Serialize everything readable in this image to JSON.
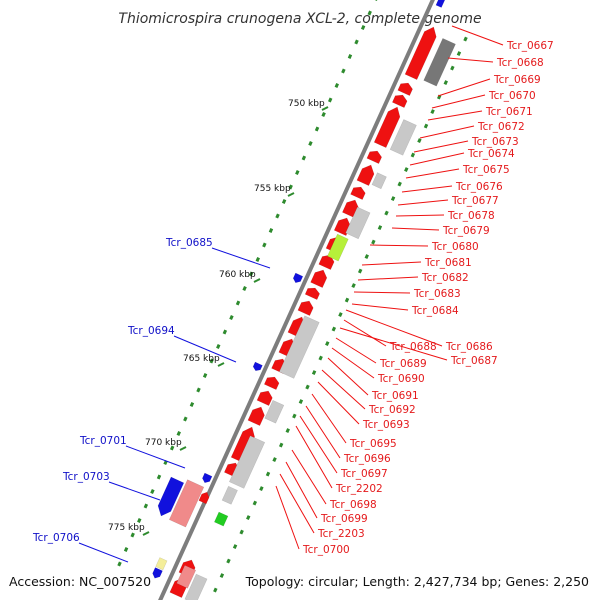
{
  "title": "Thiomicrospira crunogena XCL-2, complete genome",
  "accession": "Accession: NC_007520",
  "summary": "Topology: circular; Length: 2,427,734 bp; Genes: 2,250",
  "ticks": [
    "750 kbp",
    "755 kbp",
    "760 kbp",
    "765 kbp",
    "770 kbp",
    "775 kbp"
  ],
  "right_labels": [
    "Tcr_0667",
    "Tcr_0668",
    "Tcr_0669",
    "Tcr_0670",
    "Tcr_0671",
    "Tcr_0672",
    "Tcr_0673",
    "Tcr_0674",
    "Tcr_0675",
    "Tcr_0676",
    "Tcr_0677",
    "Tcr_0678",
    "Tcr_0679",
    "Tcr_0680",
    "Tcr_0681",
    "Tcr_0682",
    "Tcr_0683",
    "Tcr_0684",
    "Tcr_0686",
    "Tcr_0688",
    "Tcr_0687",
    "Tcr_0689",
    "Tcr_0690",
    "Tcr_0691",
    "Tcr_0692",
    "Tcr_0693",
    "Tcr_0695",
    "Tcr_0696",
    "Tcr_0697",
    "Tcr_2202",
    "Tcr_0698",
    "Tcr_0699",
    "Tcr_2203",
    "Tcr_0700"
  ],
  "left_labels": [
    "Tcr_0685",
    "Tcr_0694",
    "Tcr_0701",
    "Tcr_0703",
    "Tcr_0706"
  ],
  "colors": {
    "backbone": "#7a7a7a",
    "cds_forward": "#ee1111",
    "cds_reverse": "#1111dd",
    "rna_gray": "#c8c8c8",
    "rna_dark": "#777777",
    "pink": "#f08a8a",
    "lime": "#b6f03a",
    "green": "#22cc22",
    "tick_green": "#2e8b2e",
    "yellow": "#f4ee9a"
  }
}
